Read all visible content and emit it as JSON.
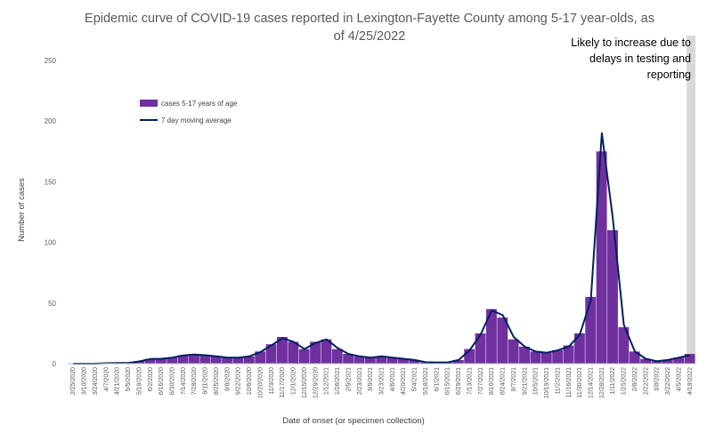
{
  "chart_data": {
    "type": "bar",
    "title_line1": "Epidemic curve of COVID-19 cases reported in Lexington-Fayette County among 5-17 year-olds, as",
    "title_line2": "of 4/25/2022",
    "xlabel": "Date of onset (or specimen collection)",
    "ylabel": "Number of cases",
    "ylim": [
      0,
      250
    ],
    "yticks": [
      0,
      50,
      100,
      150,
      200,
      250
    ],
    "grid": false,
    "legend_position": "top-left",
    "colors": {
      "bars": "#7030a0",
      "line": "#002060",
      "shade": "#d9d9d9"
    },
    "annotation": {
      "lines": [
        "Likely to increase due to",
        "delays in testing and",
        "reporting"
      ],
      "shaded_from": "4/11/2022",
      "shaded_to": "4/25/2022"
    },
    "x_tick_labels": [
      "2/25/2020",
      "3/10/2020",
      "3/24/2020",
      "4/7/2020",
      "4/21/2020",
      "5/5/2020",
      "5/19/2020",
      "6/2/2020",
      "6/16/2020",
      "6/30/2020",
      "7/14/2020",
      "7/28/2020",
      "8/11/2020",
      "8/25/2020",
      "9/8/2020",
      "9/22/2020",
      "10/6/2020",
      "10/20/2020",
      "11/3/2020",
      "11/17/2020",
      "12/1/2020",
      "12/15/2020",
      "12/29/2020",
      "1/12/2021",
      "1/26/2021",
      "2/9/2021",
      "2/23/2021",
      "3/9/2021",
      "3/23/2021",
      "4/6/2021",
      "4/20/2021",
      "5/4/2021",
      "5/18/2021",
      "6/1/2021",
      "6/15/2021",
      "6/29/2021",
      "7/13/2021",
      "7/27/2021",
      "8/10/2021",
      "8/24/2021",
      "9/7/2021",
      "9/21/2021",
      "10/5/2021",
      "10/19/2021",
      "11/2/2021",
      "11/16/2021",
      "11/30/2021",
      "12/14/2021",
      "12/28/2021",
      "1/11/2022",
      "1/25/2022",
      "2/8/2022",
      "2/22/2022",
      "3/8/2022",
      "3/22/2022",
      "4/5/2022",
      "4/19/2022"
    ],
    "series": [
      {
        "name": "cases 5-17 years of age",
        "kind": "bar",
        "start_date": "2/25/2020",
        "interval_days": 14,
        "note_values": "approximate biweekly average of daily counts",
        "values": [
          0,
          0,
          0,
          0.5,
          0.5,
          0.5,
          2,
          4,
          4,
          5,
          7,
          8,
          7,
          6,
          5,
          5,
          6,
          10,
          16,
          22,
          18,
          12,
          18,
          20,
          12,
          8,
          6,
          5,
          6,
          5,
          4,
          3,
          1,
          1,
          1,
          3,
          12,
          25,
          45,
          38,
          20,
          14,
          10,
          9,
          11,
          15,
          25,
          55,
          175,
          110,
          30,
          10,
          4,
          2,
          3,
          5,
          8
        ]
      },
      {
        "name": "7 day moving average",
        "kind": "line",
        "values": [
          0,
          0,
          0,
          0.4,
          0.5,
          0.5,
          1.8,
          3.8,
          4,
          5,
          6.8,
          7.5,
          7,
          6,
          5,
          5,
          6,
          9.5,
          15,
          21,
          18,
          12,
          17,
          20,
          13,
          8,
          6,
          5,
          6,
          5,
          4,
          3,
          1.2,
          1,
          1,
          3,
          11,
          24,
          44,
          40,
          22,
          14,
          10,
          9,
          11,
          14,
          24,
          52,
          190,
          120,
          32,
          10,
          4,
          2,
          3,
          5,
          7
        ]
      }
    ]
  }
}
